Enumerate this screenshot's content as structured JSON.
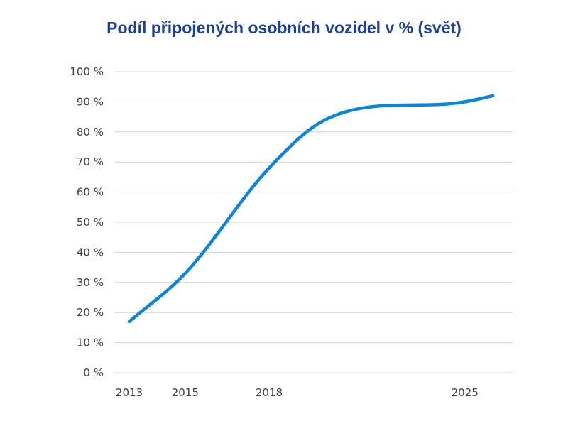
{
  "chart_data": {
    "type": "line",
    "title": "Podíl připojených osobních vozidel v % (svět)",
    "xlabel": "",
    "ylabel": "",
    "ylim": [
      0,
      100
    ],
    "yticks": [
      "0 %",
      "10 %",
      "20 %",
      "30 %",
      "40 %",
      "50 %",
      "60 %",
      "70 %",
      "80 %",
      "90 %",
      "100 %"
    ],
    "xticks": [
      "2013",
      "2015",
      "2018",
      "2025"
    ],
    "grid": true,
    "legend": "none",
    "series": [
      {
        "color": "#0a86d8",
        "x": [
          2013,
          2015,
          2018,
          2020,
          2025,
          2026
        ],
        "y": [
          17,
          33,
          68,
          84,
          90,
          92
        ]
      }
    ]
  }
}
